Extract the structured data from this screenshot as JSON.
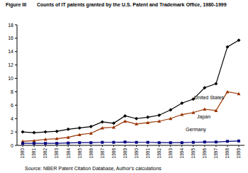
{
  "chart_data": {
    "type": "line",
    "title": "Figure III",
    "subtitle": "Counts of IT patents granted by the U.S. Patent and Trademark Office, 1980-1999",
    "source": "Source: NBER Patent Citation Database, Author's calculations",
    "categories": [
      "1980",
      "1981",
      "1982",
      "1983",
      "1984",
      "1985",
      "1986",
      "1987",
      "1988",
      "1989",
      "1990",
      "1991",
      "1992",
      "1993",
      "1994",
      "1995",
      "1996",
      "1997",
      "1998",
      "1999"
    ],
    "series": [
      {
        "name": "United States",
        "color": "#000000",
        "marker": "diamond",
        "values": [
          2.0,
          1.9,
          2.0,
          2.1,
          2.4,
          2.6,
          2.8,
          3.5,
          3.3,
          4.4,
          4.0,
          4.2,
          4.5,
          5.3,
          6.3,
          6.9,
          8.6,
          9.2,
          14.7,
          15.7
        ]
      },
      {
        "name": "Japan",
        "color": "#993300",
        "marker": "triangle",
        "values": [
          0.6,
          0.7,
          0.9,
          1.0,
          1.2,
          1.6,
          1.8,
          2.6,
          2.7,
          3.6,
          3.2,
          3.4,
          3.6,
          4.0,
          4.6,
          4.9,
          5.4,
          5.2,
          8.0,
          7.7
        ]
      },
      {
        "name": "Germany",
        "color": "#000080",
        "marker": "square",
        "values": [
          0.3,
          0.3,
          0.3,
          0.3,
          0.35,
          0.4,
          0.4,
          0.45,
          0.45,
          0.5,
          0.45,
          0.45,
          0.4,
          0.4,
          0.4,
          0.45,
          0.5,
          0.5,
          0.6,
          0.65
        ]
      }
    ],
    "ylim": [
      0,
      18
    ],
    "yticks": [
      0,
      2,
      4,
      6,
      8,
      10,
      12,
      14,
      16,
      18
    ],
    "grid": false
  }
}
